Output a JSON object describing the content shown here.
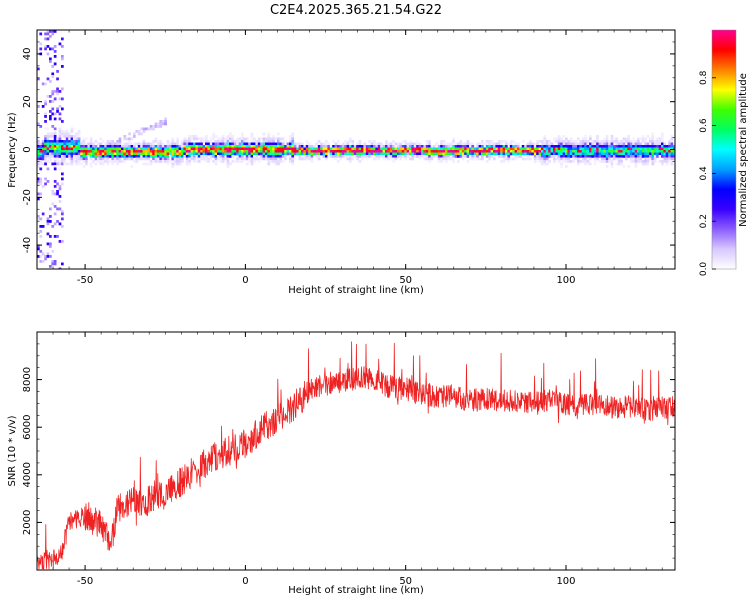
{
  "figure_title": "C2E4.2025.365.21.54.G22",
  "chart_data": [
    {
      "type": "heatmap",
      "title": "C2E4.2025.365.21.54.G22",
      "xlabel": "Height of straight line (km)",
      "ylabel": "Frequency (Hz)",
      "xlim": [
        -65,
        134
      ],
      "ylim": [
        -50,
        50
      ],
      "xticks": [
        -50,
        0,
        50,
        100
      ],
      "yticks": [
        -40,
        -20,
        0,
        20,
        40
      ],
      "colorbar": {
        "label": "Normalized spectral amplitude",
        "range": [
          0,
          1
        ],
        "ticks": [
          "0.0",
          "0.2",
          "0.4",
          "0.6",
          "0.8"
        ],
        "colors": [
          "#ffffff",
          "#d8c8ff",
          "#8a5cff",
          "#3a00ff",
          "#0000ff",
          "#00a0ff",
          "#00ffff",
          "#00ff60",
          "#40ff00",
          "#ffff00",
          "#ff8000",
          "#ff0000",
          "#ff0090"
        ]
      },
      "description_ridge_hz": 0,
      "ridge_segments": [
        {
          "x_start": -63,
          "x_end": -52,
          "center": 1.5,
          "halfwidth": 4,
          "peak": 0.65
        },
        {
          "x_start": -52,
          "x_end": -20,
          "center": -0.5,
          "halfwidth": 2.5,
          "peak": 0.85
        },
        {
          "x_start": -20,
          "x_end": 15,
          "center": 0.5,
          "halfwidth": 3,
          "peak": 0.9
        },
        {
          "x_start": 15,
          "x_end": 92,
          "center": 0,
          "halfwidth": 2,
          "peak": 0.95
        },
        {
          "x_start": 92,
          "x_end": 134,
          "center": 0,
          "halfwidth": 3,
          "peak": 0.6
        }
      ]
    },
    {
      "type": "line",
      "xlabel": "Height of straight line (km)",
      "ylabel": "SNR (10 * v/v)",
      "xlim": [
        -65,
        134
      ],
      "ylim": [
        0,
        10000
      ],
      "xticks": [
        -50,
        0,
        50,
        100
      ],
      "yticks": [
        2000,
        4000,
        6000,
        8000
      ],
      "series": [
        {
          "name": "SNR",
          "color": "#ee2222",
          "x": [
            -65,
            -60,
            -57,
            -55,
            -50,
            -45,
            -42,
            -40,
            -35,
            -30,
            -25,
            -20,
            -15,
            -10,
            -5,
            0,
            5,
            10,
            15,
            20,
            25,
            30,
            35,
            40,
            45,
            50,
            55,
            60,
            65,
            70,
            75,
            80,
            85,
            90,
            95,
            100,
            105,
            110,
            115,
            120,
            125,
            130,
            134
          ],
          "y": [
            300,
            400,
            900,
            2000,
            2300,
            1900,
            1000,
            2600,
            2900,
            2900,
            3200,
            3700,
            4300,
            4700,
            5000,
            5300,
            5900,
            6400,
            6900,
            7500,
            7800,
            7900,
            8100,
            8000,
            7700,
            7600,
            7400,
            7300,
            7300,
            7100,
            7200,
            7100,
            7100,
            7000,
            7100,
            7000,
            6900,
            7000,
            6800,
            6900,
            6700,
            6800,
            6900
          ]
        }
      ]
    }
  ]
}
